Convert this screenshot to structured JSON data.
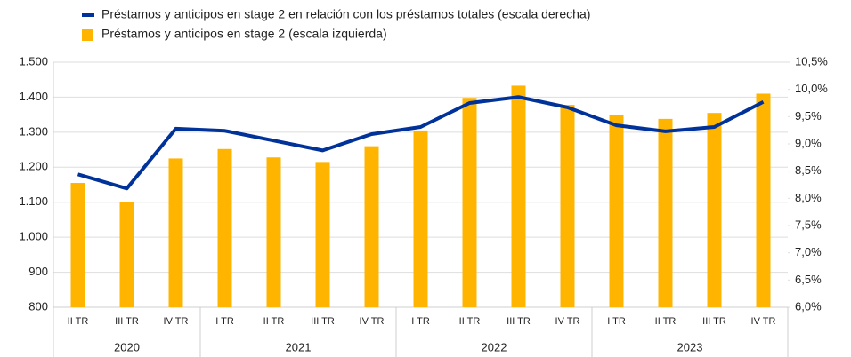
{
  "chart_data": {
    "type": "bar-line",
    "groups": [
      {
        "name": "2020",
        "categories": [
          "II TR",
          "III TR",
          "IV TR"
        ]
      },
      {
        "name": "2021",
        "categories": [
          "I TR",
          "II TR",
          "III TR",
          "IV TR"
        ]
      },
      {
        "name": "2022",
        "categories": [
          "I TR",
          "II TR",
          "III TR",
          "IV TR"
        ]
      },
      {
        "name": "2023",
        "categories": [
          "I TR",
          "II TR",
          "III TR",
          "IV TR"
        ]
      }
    ],
    "series": [
      {
        "name": "Préstamos y anticipos en stage 2 en relación con los préstamos totales (escala derecha)",
        "type": "line",
        "axis": "y2",
        "color": "#003299",
        "values": [
          8.44,
          8.18,
          9.28,
          9.24,
          9.06,
          8.88,
          9.18,
          9.31,
          9.75,
          9.86,
          9.67,
          9.34,
          9.23,
          9.31,
          9.77
        ]
      },
      {
        "name": "Préstamos y anticipos en stage 2 (escala izquierda)",
        "type": "bar",
        "axis": "y",
        "color": "#ffb400",
        "values": [
          1155,
          1100,
          1225,
          1252,
          1228,
          1215,
          1260,
          1305,
          1398,
          1433,
          1378,
          1348,
          1338,
          1355,
          1410
        ]
      }
    ],
    "ylim": [
      800,
      1500
    ],
    "yticks": [
      800,
      900,
      {
        "value": 1000,
        "label": "1.000"
      },
      {
        "value": 1100,
        "label": "1.100"
      },
      {
        "value": 1200,
        "label": "1.200"
      },
      {
        "value": 1300,
        "label": "1.300"
      },
      {
        "value": 1400,
        "label": "1.400"
      },
      {
        "value": 1500,
        "label": "1.500"
      }
    ],
    "y2lim": [
      6,
      10.5
    ],
    "y2ticks": [
      {
        "value": 6,
        "label": "6,0%"
      },
      {
        "value": 6.5,
        "label": "6,5%"
      },
      {
        "value": 7,
        "label": "7,0%"
      },
      {
        "value": 7.5,
        "label": "7,5%"
      },
      {
        "value": 8,
        "label": "8,0%"
      },
      {
        "value": 8.5,
        "label": "8,5%"
      },
      {
        "value": 9,
        "label": "9,0%"
      },
      {
        "value": 9.5,
        "label": "9,5%"
      },
      {
        "value": 10,
        "label": "10,0%"
      },
      {
        "value": 10.5,
        "label": "10,5%"
      }
    ],
    "grid": true
  }
}
